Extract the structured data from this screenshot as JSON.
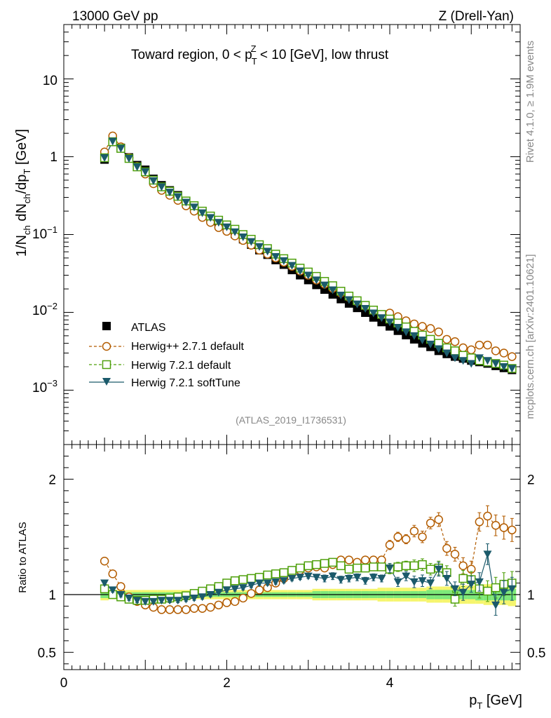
{
  "header": {
    "left": "13000 GeV pp",
    "right": "Z (Drell-Yan)"
  },
  "side": {
    "rivet": "Rivet 4.1.0, ≥ 1.9M events",
    "mcplots": "mcplots.cern.ch [arXiv:2401.10621]"
  },
  "plot_title": {
    "pre": "Toward region, 0 < p",
    "sub": "T",
    "sup": "Z",
    "post": " < 10 [GeV], low thrust"
  },
  "analysis_id": "(ATLAS_2019_I1736531)",
  "colors": {
    "atlas": "#000000",
    "herwigpp": "#b35c00",
    "herwig721": "#4fa00c",
    "softtune": "#1b5a6b",
    "band_yellow": "#f5f56e",
    "band_green": "#7de87a"
  },
  "chart_data": [
    {
      "type": "scatter",
      "title": "Toward region, 0 < pT^Z < 10 [GeV], low thrust",
      "xlabel": "pT [GeV]",
      "ylabel": "1/Nch dNch/dpT [GeV]",
      "ylabel_parts": {
        "a": "1/N",
        "b": "ch",
        "c": " dN",
        "d": "ch",
        "e": "/dp",
        "f": "T",
        "g": " [GeV]"
      },
      "yscale": "log",
      "xlim": [
        0,
        5.6
      ],
      "ylim": [
        0.0002,
        50
      ],
      "yticks": [
        {
          "v": 10,
          "base": "10",
          "exp": ""
        },
        {
          "v": 1,
          "base": "1",
          "exp": ""
        },
        {
          "v": 0.1,
          "base": "10",
          "exp": "−1"
        },
        {
          "v": 0.01,
          "base": "10",
          "exp": "−2"
        },
        {
          "v": 0.001,
          "base": "10",
          "exp": "−3"
        }
      ],
      "x": [
        0.5,
        0.6,
        0.7,
        0.8,
        0.9,
        1.0,
        1.1,
        1.2,
        1.3,
        1.4,
        1.5,
        1.6,
        1.7,
        1.8,
        1.9,
        2.0,
        2.1,
        2.2,
        2.3,
        2.4,
        2.5,
        2.6,
        2.7,
        2.8,
        2.9,
        3.0,
        3.1,
        3.2,
        3.3,
        3.4,
        3.5,
        3.6,
        3.7,
        3.8,
        3.9,
        4.0,
        4.1,
        4.2,
        4.3,
        4.4,
        4.5,
        4.6,
        4.7,
        4.8,
        4.9,
        5.0,
        5.1,
        5.2,
        5.3,
        5.4,
        5.5
      ],
      "series": [
        {
          "name": "ATLAS",
          "marker": "filled-square",
          "values": [
            0.92,
            1.55,
            1.3,
            0.98,
            0.78,
            0.68,
            0.52,
            0.43,
            0.37,
            0.32,
            0.27,
            0.23,
            0.19,
            0.163,
            0.14,
            0.119,
            0.102,
            0.087,
            0.074,
            0.063,
            0.055,
            0.047,
            0.041,
            0.035,
            0.03,
            0.026,
            0.0225,
            0.0196,
            0.017,
            0.0148,
            0.013,
            0.0114,
            0.0099,
            0.0086,
            0.0075,
            0.0066,
            0.0058,
            0.0051,
            0.0045,
            0.004,
            0.0036,
            0.0032,
            0.00292,
            0.0027,
            0.00255,
            0.0024,
            0.0023,
            0.0022,
            0.00205,
            0.00193,
            0.00182
          ]
        },
        {
          "name": "Herwig++ 2.7.1 default",
          "marker": "open-circle",
          "values": [
            1.15,
            1.85,
            1.34,
            0.97,
            0.75,
            0.6,
            0.45,
            0.37,
            0.32,
            0.275,
            0.234,
            0.2,
            0.166,
            0.143,
            0.123,
            0.11,
            0.096,
            0.084,
            0.073,
            0.063,
            0.056,
            0.05,
            0.044,
            0.039,
            0.034,
            0.03,
            0.026,
            0.023,
            0.0203,
            0.0177,
            0.0156,
            0.0137,
            0.012,
            0.0105,
            0.0092,
            0.0098,
            0.0088,
            0.0078,
            0.0071,
            0.0066,
            0.0062,
            0.0056,
            0.0045,
            0.0042,
            0.0035,
            0.0033,
            0.0038,
            0.0038,
            0.0032,
            0.003,
            0.0027
          ]
        },
        {
          "name": "Herwig 7.2.1 default",
          "marker": "open-square",
          "values": [
            0.97,
            1.56,
            1.28,
            0.95,
            0.74,
            0.64,
            0.5,
            0.41,
            0.36,
            0.31,
            0.27,
            0.235,
            0.2,
            0.173,
            0.153,
            0.133,
            0.117,
            0.1,
            0.087,
            0.074,
            0.066,
            0.056,
            0.049,
            0.043,
            0.037,
            0.033,
            0.029,
            0.025,
            0.022,
            0.0187,
            0.0162,
            0.0141,
            0.0123,
            0.0107,
            0.0094,
            0.0082,
            0.0073,
            0.0065,
            0.0057,
            0.0051,
            0.0045,
            0.004,
            0.0035,
            0.0032,
            0.0028,
            0.0026,
            0.0024,
            0.0023,
            0.0022,
            0.0021,
            0.0019
          ]
        },
        {
          "name": "Herwig 7.2.1 softTune",
          "marker": "filled-triangle-down",
          "values": [
            0.97,
            1.58,
            1.28,
            0.95,
            0.74,
            0.64,
            0.49,
            0.41,
            0.35,
            0.305,
            0.26,
            0.225,
            0.19,
            0.165,
            0.143,
            0.125,
            0.108,
            0.093,
            0.081,
            0.07,
            0.061,
            0.052,
            0.046,
            0.04,
            0.034,
            0.03,
            0.026,
            0.0224,
            0.0194,
            0.0166,
            0.0145,
            0.0128,
            0.0112,
            0.0098,
            0.0085,
            0.0075,
            0.0064,
            0.0056,
            0.005,
            0.0044,
            0.0039,
            0.0034,
            0.003,
            0.0026,
            0.0024,
            0.0022,
            0.0026,
            0.0024,
            0.0022,
            0.002,
            0.0019
          ]
        }
      ],
      "legend": {
        "placement": "middle-left",
        "entries": [
          "ATLAS",
          "Herwig++ 2.7.1 default",
          "Herwig 7.2.1 default",
          "Herwig 7.2.1 softTune"
        ]
      }
    },
    {
      "type": "scatter",
      "title": "Ratio to ATLAS",
      "xlabel": "pT [GeV]",
      "ylabel": "Ratio to ATLAS",
      "xlim": [
        0,
        5.6
      ],
      "ylim": [
        0.35,
        2.3
      ],
      "yticks": [
        0.5,
        1,
        2
      ],
      "xticks": [
        0,
        2,
        4
      ],
      "reference": 1.0,
      "x": [
        0.5,
        0.6,
        0.7,
        0.8,
        0.9,
        1.0,
        1.1,
        1.2,
        1.3,
        1.4,
        1.5,
        1.6,
        1.7,
        1.8,
        1.9,
        2.0,
        2.1,
        2.2,
        2.3,
        2.4,
        2.5,
        2.6,
        2.7,
        2.8,
        2.9,
        3.0,
        3.1,
        3.2,
        3.3,
        3.4,
        3.5,
        3.6,
        3.7,
        3.8,
        3.9,
        4.0,
        4.1,
        4.2,
        4.3,
        4.4,
        4.5,
        4.6,
        4.7,
        4.8,
        4.9,
        5.0,
        5.1,
        5.2,
        5.3,
        5.4,
        5.5
      ],
      "bands": {
        "yellow_half_width": [
          0.05,
          0.04,
          0.04,
          0.04,
          0.04,
          0.04,
          0.04,
          0.04,
          0.04,
          0.04,
          0.04,
          0.04,
          0.04,
          0.04,
          0.04,
          0.04,
          0.04,
          0.04,
          0.04,
          0.04,
          0.04,
          0.04,
          0.04,
          0.04,
          0.04,
          0.04,
          0.05,
          0.05,
          0.05,
          0.05,
          0.05,
          0.05,
          0.05,
          0.05,
          0.06,
          0.06,
          0.06,
          0.06,
          0.06,
          0.06,
          0.07,
          0.07,
          0.07,
          0.07,
          0.08,
          0.08,
          0.08,
          0.09,
          0.09,
          0.09,
          0.1
        ],
        "green_half_width": [
          0.03,
          0.02,
          0.02,
          0.02,
          0.02,
          0.02,
          0.02,
          0.02,
          0.02,
          0.02,
          0.02,
          0.02,
          0.02,
          0.02,
          0.02,
          0.02,
          0.02,
          0.02,
          0.02,
          0.02,
          0.02,
          0.02,
          0.02,
          0.02,
          0.02,
          0.02,
          0.03,
          0.03,
          0.03,
          0.03,
          0.03,
          0.03,
          0.03,
          0.03,
          0.03,
          0.03,
          0.03,
          0.03,
          0.03,
          0.03,
          0.04,
          0.04,
          0.04,
          0.04,
          0.04,
          0.04,
          0.05,
          0.05,
          0.05,
          0.05,
          0.05
        ]
      },
      "series": [
        {
          "name": "Herwig++ 2.7.1 default",
          "marker": "open-circle",
          "values": [
            1.29,
            1.18,
            1.07,
            0.98,
            0.94,
            0.91,
            0.89,
            0.87,
            0.87,
            0.87,
            0.87,
            0.88,
            0.88,
            0.89,
            0.91,
            0.93,
            0.94,
            0.97,
            1.01,
            1.04,
            1.06,
            1.1,
            1.14,
            1.18,
            1.21,
            1.23,
            1.24,
            1.23,
            1.26,
            1.3,
            1.3,
            1.28,
            1.3,
            1.3,
            1.3,
            1.43,
            1.5,
            1.48,
            1.55,
            1.5,
            1.62,
            1.65,
            1.4,
            1.35,
            1.25,
            1.22,
            1.63,
            1.68,
            1.6,
            1.58,
            1.56
          ],
          "errors": [
            0.02,
            0.02,
            0.02,
            0.02,
            0.02,
            0.02,
            0.02,
            0.02,
            0.02,
            0.02,
            0.02,
            0.02,
            0.02,
            0.02,
            0.02,
            0.02,
            0.02,
            0.02,
            0.02,
            0.02,
            0.02,
            0.02,
            0.02,
            0.02,
            0.02,
            0.02,
            0.02,
            0.03,
            0.03,
            0.03,
            0.03,
            0.03,
            0.03,
            0.03,
            0.03,
            0.04,
            0.04,
            0.04,
            0.05,
            0.05,
            0.05,
            0.06,
            0.06,
            0.06,
            0.07,
            0.07,
            0.08,
            0.09,
            0.09,
            0.1,
            0.1
          ]
        },
        {
          "name": "Herwig 7.2.1 default",
          "marker": "open-square",
          "values": [
            1.05,
            1.0,
            0.98,
            0.96,
            0.95,
            0.95,
            0.96,
            0.96,
            0.97,
            0.98,
            0.99,
            1.01,
            1.03,
            1.05,
            1.07,
            1.1,
            1.12,
            1.13,
            1.14,
            1.15,
            1.17,
            1.18,
            1.19,
            1.21,
            1.23,
            1.25,
            1.26,
            1.27,
            1.28,
            1.25,
            1.22,
            1.23,
            1.23,
            1.24,
            1.24,
            1.22,
            1.24,
            1.25,
            1.25,
            1.26,
            1.22,
            1.23,
            1.19,
            0.96,
            1.14,
            1.13,
            1.05,
            1.03,
            1.06,
            1.09,
            1.1
          ],
          "errors": [
            0.02,
            0.02,
            0.02,
            0.02,
            0.02,
            0.02,
            0.02,
            0.02,
            0.02,
            0.02,
            0.02,
            0.02,
            0.02,
            0.02,
            0.02,
            0.02,
            0.02,
            0.02,
            0.02,
            0.02,
            0.02,
            0.02,
            0.02,
            0.02,
            0.02,
            0.02,
            0.02,
            0.03,
            0.03,
            0.03,
            0.03,
            0.03,
            0.03,
            0.03,
            0.03,
            0.04,
            0.04,
            0.04,
            0.05,
            0.05,
            0.05,
            0.06,
            0.06,
            0.06,
            0.07,
            0.07,
            0.08,
            0.09,
            0.09,
            0.1,
            0.1
          ]
        },
        {
          "name": "Herwig 7.2.1 softTune",
          "marker": "filled-triangle-down",
          "values": [
            1.1,
            1.04,
            1.0,
            0.97,
            0.95,
            0.94,
            0.94,
            0.95,
            0.95,
            0.95,
            0.96,
            0.97,
            0.98,
            1.0,
            1.02,
            1.04,
            1.05,
            1.06,
            1.08,
            1.1,
            1.1,
            1.11,
            1.12,
            1.14,
            1.15,
            1.16,
            1.15,
            1.14,
            1.16,
            1.13,
            1.14,
            1.15,
            1.12,
            1.15,
            1.14,
            1.23,
            1.11,
            1.16,
            1.11,
            1.12,
            1.1,
            1.22,
            1.14,
            1.05,
            1.02,
            1.09,
            1.11,
            1.35,
            0.91,
            1.02,
            1.05
          ],
          "errors": [
            0.02,
            0.02,
            0.02,
            0.02,
            0.02,
            0.02,
            0.02,
            0.02,
            0.02,
            0.02,
            0.02,
            0.02,
            0.02,
            0.02,
            0.02,
            0.02,
            0.02,
            0.02,
            0.02,
            0.02,
            0.02,
            0.02,
            0.02,
            0.02,
            0.02,
            0.02,
            0.02,
            0.03,
            0.03,
            0.03,
            0.03,
            0.03,
            0.03,
            0.03,
            0.03,
            0.04,
            0.04,
            0.04,
            0.05,
            0.05,
            0.05,
            0.06,
            0.06,
            0.06,
            0.07,
            0.07,
            0.08,
            0.09,
            0.09,
            0.1,
            0.1
          ]
        }
      ]
    }
  ]
}
